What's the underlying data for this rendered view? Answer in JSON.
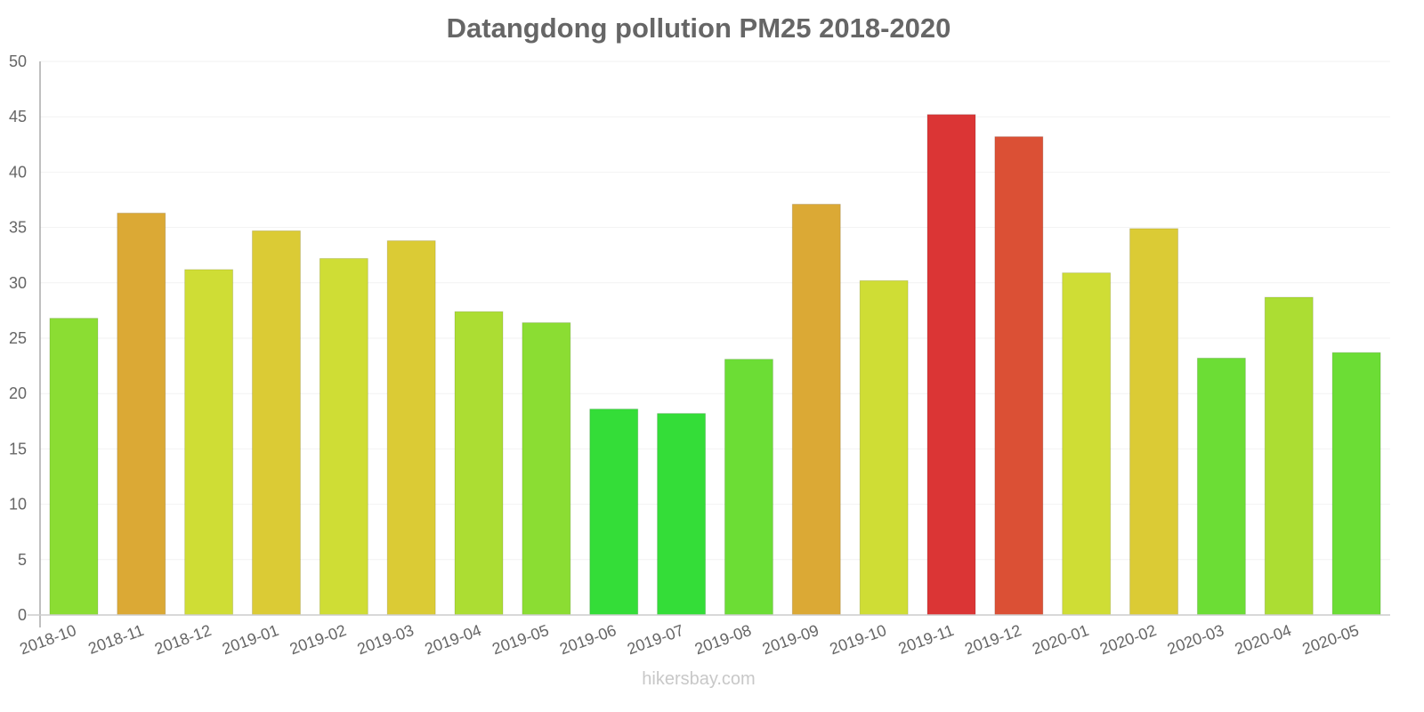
{
  "chart_data": {
    "type": "bar",
    "title": "Datangdong pollution PM25 2018-2020",
    "xlabel": "",
    "ylabel": "",
    "ylim": [
      0,
      50
    ],
    "yticks": [
      0,
      5,
      10,
      15,
      20,
      25,
      30,
      35,
      40,
      45,
      50
    ],
    "grid": true,
    "legend": null,
    "categories": [
      "2018-10",
      "2018-11",
      "2018-12",
      "2019-01",
      "2019-02",
      "2019-03",
      "2019-04",
      "2019-05",
      "2019-06",
      "2019-07",
      "2019-08",
      "2019-09",
      "2019-10",
      "2019-11",
      "2019-12",
      "2020-01",
      "2020-02",
      "2020-03",
      "2020-04",
      "2020-05"
    ],
    "values": [
      26.8,
      36.3,
      31.2,
      34.7,
      32.2,
      33.8,
      27.4,
      26.4,
      18.6,
      18.2,
      23.1,
      37.1,
      30.2,
      45.2,
      43.2,
      30.9,
      34.9,
      23.2,
      28.7,
      23.7
    ],
    "colors": [
      "#8bdd33",
      "#dba935",
      "#cfdd35",
      "#dbcb35",
      "#cfdd35",
      "#dbcb35",
      "#acdd33",
      "#8bdd33",
      "#34dd38",
      "#34dd38",
      "#6cdd35",
      "#dba935",
      "#cfdd35",
      "#db3535",
      "#db5035",
      "#cfdd35",
      "#dbcb35",
      "#6cdd35",
      "#acdd33",
      "#6cdd35"
    ]
  },
  "watermark": "hikersbay.com"
}
